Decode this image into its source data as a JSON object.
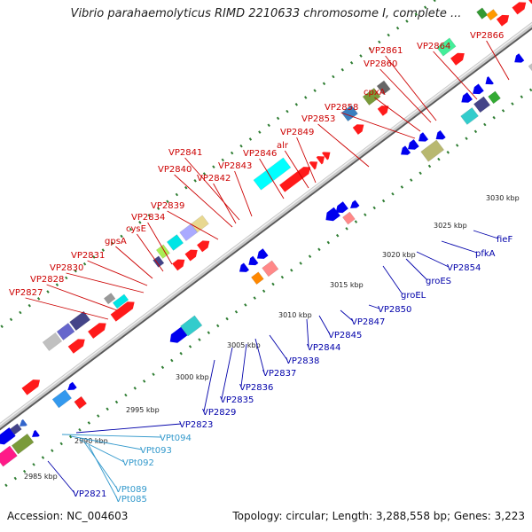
{
  "title": "Vibrio parahaemolyticus RIMD 2210633 chromosome I, complete ...",
  "footer": {
    "accession": "Accession: NC_004603",
    "summary": "Topology: circular; Length: 3,288,558 bp; Genes: 3,223"
  },
  "colors": {
    "forward_label": "#cc0000",
    "reverse_label": "#0000aa",
    "trna_label": "#3399cc",
    "backbone": "#8c8c8c",
    "tick": "#2e7d32"
  },
  "kbp_labels": [
    "2985 kbp",
    "2990 kbp",
    "2995 kbp",
    "3000 kbp",
    "3005 kbp",
    "3010 kbp",
    "3015 kbp",
    "3020 kbp",
    "3025 kbp",
    "3030 kbp"
  ],
  "forward_labels": [
    "VP2827",
    "VP2828",
    "VP2830",
    "VP2831",
    "gpsA",
    "cysE",
    "VP2834",
    "VP2839",
    "VP2840",
    "VP2842",
    "VP2841",
    "VP2843",
    "VP2846",
    "alr",
    "VP2849",
    "VP2853",
    "VP2858",
    "cpxA",
    "VP2860",
    "VP2861",
    "VP2864",
    "VP2866"
  ],
  "reverse_labels": [
    "VP2821",
    "VP2823",
    "VP2829",
    "VP2835",
    "VP2836",
    "VP2837",
    "VP2838",
    "VP2844",
    "VP2845",
    "VP2847",
    "VP2850",
    "groEL",
    "groES",
    "VP2854",
    "pfkA",
    "fieF"
  ],
  "trna_labels": [
    "VPt094",
    "VPt093",
    "VPt092",
    "VPt089",
    "VPt085"
  ]
}
